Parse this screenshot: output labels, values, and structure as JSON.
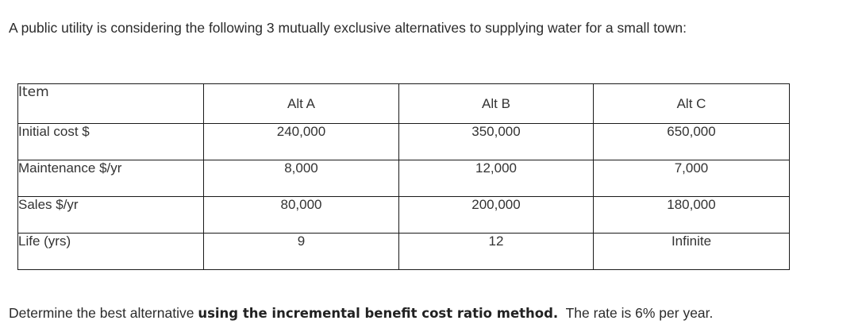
{
  "intro_text": "A public utility is considering the following 3 mutually exclusive alternatives to supplying water for a small town:",
  "table": {
    "headers": [
      "Item",
      "Alt A",
      "Alt B",
      "Alt C"
    ],
    "rows": [
      {
        "label": "Initial cost $",
        "values": [
          "240,000",
          "350,000",
          "650,000"
        ]
      },
      {
        "label": "Maintenance $/yr",
        "values": [
          "8,000",
          "12,000",
          "7,000"
        ]
      },
      {
        "label": "Sales $/yr",
        "values": [
          "80,000",
          "200,000",
          "180,000"
        ]
      },
      {
        "label": "Life (yrs)",
        "values": [
          "9",
          "12",
          "Infinite"
        ]
      }
    ]
  },
  "question": {
    "before": "Determine the best alternative ",
    "emphasis": "using the incremental benefit cost ratio method.",
    "after": "  The rate is 6% per year."
  }
}
